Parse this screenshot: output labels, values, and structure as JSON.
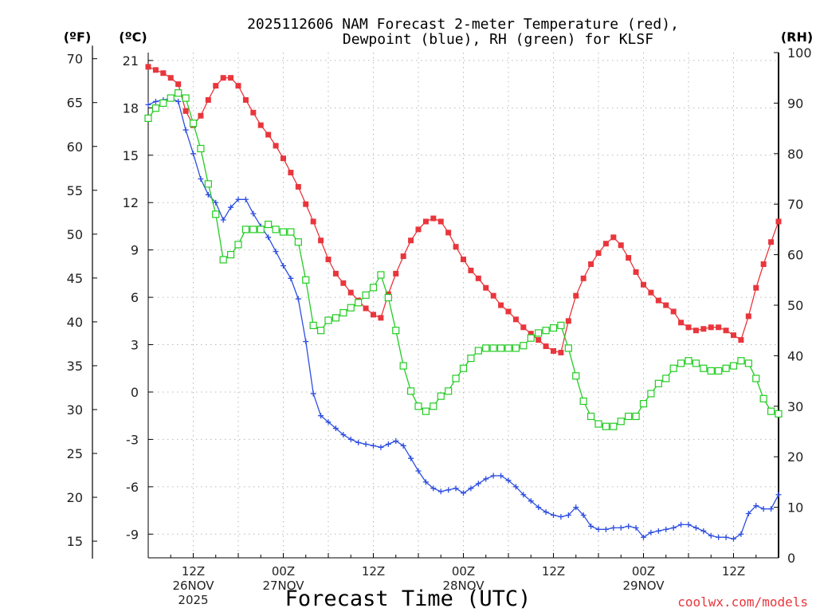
{
  "chart_data": {
    "type": "line",
    "title_line1": "2025112606 NAM Forecast 2-meter Temperature (red),",
    "title_line2": "Dewpoint (blue), RH (green) for KLSF",
    "station": "KLSF",
    "init_time": "2025112606",
    "xlabel": "Forecast Time (UTC)",
    "credit": "coolwx.com/models",
    "units": {
      "fahrenheit": "(ºF)",
      "celsius": "(ºC)",
      "rh": "(RH)"
    },
    "x_hours": [
      0,
      1,
      2,
      3,
      4,
      5,
      6,
      7,
      8,
      9,
      10,
      11,
      12,
      13,
      14,
      15,
      16,
      17,
      18,
      19,
      20,
      21,
      22,
      23,
      24,
      25,
      26,
      27,
      28,
      29,
      30,
      31,
      32,
      33,
      34,
      35,
      36,
      37,
      38,
      39,
      40,
      41,
      42,
      43,
      44,
      45,
      46,
      47,
      48,
      49,
      50,
      51,
      52,
      53,
      54,
      55,
      56,
      57,
      58,
      59,
      60,
      61,
      62,
      63,
      64,
      65,
      66,
      67,
      68,
      69,
      70,
      71,
      72,
      73,
      74,
      75,
      76,
      77,
      78,
      79,
      80,
      81,
      82,
      83,
      84
    ],
    "xlim": [
      0,
      84
    ],
    "x_ticks": [
      {
        "hour": 6,
        "lines": [
          "12Z",
          "26NOV",
          "2025"
        ]
      },
      {
        "hour": 18,
        "lines": [
          "00Z",
          "27NOV"
        ]
      },
      {
        "hour": 30,
        "lines": [
          "12Z"
        ]
      },
      {
        "hour": 42,
        "lines": [
          "00Z",
          "28NOV"
        ]
      },
      {
        "hour": 54,
        "lines": [
          "12Z"
        ]
      },
      {
        "hour": 66,
        "lines": [
          "00Z",
          "29NOV"
        ]
      },
      {
        "hour": 78,
        "lines": [
          "12Z"
        ]
      }
    ],
    "left_axis_c": {
      "ylim": [
        -10.5,
        21.5
      ],
      "ticks": [
        21,
        18,
        15,
        12,
        9,
        6,
        3,
        0,
        -3,
        -6,
        -9
      ]
    },
    "left_axis_f": {
      "ticks": [
        70,
        65,
        60,
        55,
        50,
        45,
        40,
        35,
        30,
        25,
        20,
        15
      ]
    },
    "right_axis_rh": {
      "ylim": [
        0,
        100
      ],
      "ticks": [
        100,
        90,
        80,
        70,
        60,
        50,
        40,
        30,
        20,
        10,
        0
      ]
    },
    "grid": true,
    "series": [
      {
        "name": "2-meter Temperature",
        "unit": "C",
        "axis": "left",
        "color": "#e8363c",
        "marker": "filled-square",
        "values": [
          20.6,
          20.4,
          20.2,
          19.9,
          19.5,
          17.8,
          16.9,
          17.5,
          18.5,
          19.4,
          19.9,
          19.9,
          19.4,
          18.5,
          17.7,
          16.9,
          16.3,
          15.6,
          14.8,
          13.9,
          13.0,
          11.9,
          10.8,
          9.6,
          8.4,
          7.5,
          6.9,
          6.3,
          5.8,
          5.3,
          4.9,
          4.7,
          6.2,
          7.5,
          8.6,
          9.6,
          10.3,
          10.8,
          11.0,
          10.8,
          10.1,
          9.2,
          8.4,
          7.7,
          7.2,
          6.6,
          6.1,
          5.5,
          5.1,
          4.6,
          4.1,
          3.7,
          3.3,
          2.9,
          2.6,
          2.5,
          4.5,
          6.1,
          7.2,
          8.1,
          8.8,
          9.4,
          9.8,
          9.3,
          8.5,
          7.6,
          6.8,
          6.3,
          5.8,
          5.5,
          5.1,
          4.4,
          4.1,
          3.9,
          4.0,
          4.1,
          4.1,
          3.9,
          3.6,
          3.3,
          4.8,
          6.6,
          8.1,
          9.5,
          10.8
        ]
      },
      {
        "name": "Dewpoint",
        "unit": "C",
        "axis": "left",
        "color": "#2e4ee0",
        "marker": "plus",
        "values": [
          18.2,
          18.4,
          18.5,
          18.6,
          18.4,
          16.6,
          15.1,
          13.5,
          12.5,
          12.0,
          10.9,
          11.7,
          12.2,
          12.2,
          11.3,
          10.5,
          9.8,
          8.9,
          8.0,
          7.2,
          5.9,
          3.2,
          -0.1,
          -1.5,
          -1.9,
          -2.3,
          -2.7,
          -3.0,
          -3.2,
          -3.3,
          -3.4,
          -3.5,
          -3.3,
          -3.1,
          -3.4,
          -4.2,
          -5.0,
          -5.7,
          -6.1,
          -6.3,
          -6.2,
          -6.1,
          -6.4,
          -6.1,
          -5.8,
          -5.5,
          -5.3,
          -5.3,
          -5.6,
          -6.0,
          -6.5,
          -6.9,
          -7.3,
          -7.6,
          -7.8,
          -7.9,
          -7.8,
          -7.3,
          -7.8,
          -8.5,
          -8.7,
          -8.7,
          -8.6,
          -8.6,
          -8.5,
          -8.6,
          -9.2,
          -8.9,
          -8.8,
          -8.7,
          -8.6,
          -8.4,
          -8.4,
          -8.6,
          -8.8,
          -9.1,
          -9.2,
          -9.2,
          -9.3,
          -9.0,
          -7.7,
          -7.2,
          -7.4,
          -7.4,
          -6.5
        ]
      },
      {
        "name": "RH",
        "unit": "%",
        "axis": "right",
        "color": "#22cc22",
        "marker": "open-square",
        "values": [
          87.0,
          89.0,
          90.0,
          91.0,
          92.0,
          91.0,
          86.0,
          81.0,
          74.0,
          68.0,
          59.0,
          60.0,
          62.0,
          65.0,
          65.0,
          65.0,
          66.0,
          65.0,
          64.5,
          64.5,
          62.5,
          55.0,
          46.0,
          45.0,
          47.0,
          47.5,
          48.5,
          49.5,
          50.5,
          52.0,
          53.5,
          56.0,
          51.5,
          45.0,
          38.0,
          33.0,
          30.0,
          29.0,
          30.0,
          32.0,
          33.0,
          35.5,
          37.5,
          39.5,
          41.0,
          41.5,
          41.5,
          41.5,
          41.5,
          41.5,
          42.0,
          43.5,
          44.5,
          45.0,
          45.5,
          46.0,
          41.5,
          36.0,
          31.0,
          28.0,
          26.5,
          26.0,
          26.0,
          27.0,
          28.0,
          28.0,
          30.5,
          32.5,
          34.5,
          35.5,
          37.5,
          38.5,
          39.0,
          38.5,
          37.5,
          37.0,
          37.0,
          37.5,
          38.0,
          39.0,
          38.5,
          35.5,
          31.5,
          29.0,
          28.5
        ]
      }
    ]
  }
}
